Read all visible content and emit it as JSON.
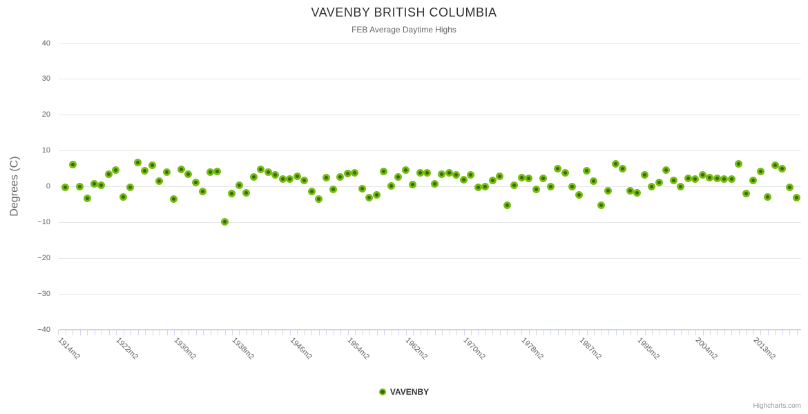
{
  "chart": {
    "title": "VAVENBY BRITISH COLUMBIA",
    "subtitle": "FEB Average Daytime Highs",
    "y_axis_title": "Degrees (C)",
    "legend_label": "VAVENBY",
    "credits_label": "Highcharts.com",
    "colors": {
      "marker_core": "#346a02",
      "marker_ring": "#77bc11",
      "grid_line": "#e6e6e6",
      "axis_line": "#ccd6eb",
      "title_text": "#333333",
      "subtitle_text": "#666666",
      "axis_label_text": "#606060",
      "legend_text": "#333333",
      "credits_text": "#999999"
    }
  },
  "chart_data": {
    "type": "scatter",
    "title": "VAVENBY BRITISH COLUMBIA",
    "subtitle": "FEB Average Daytime Highs",
    "ylabel": "Degrees (C)",
    "ylim": [
      -40,
      40
    ],
    "grid": "horizontal",
    "legend_position": "bottom-center",
    "y_ticks": [
      {
        "value": 40,
        "label": "40"
      },
      {
        "value": 30,
        "label": "30"
      },
      {
        "value": 20,
        "label": "20"
      },
      {
        "value": 10,
        "label": "10"
      },
      {
        "value": 0,
        "label": "0"
      },
      {
        "value": -10,
        "label": "−10"
      },
      {
        "value": -20,
        "label": "−20"
      },
      {
        "value": -30,
        "label": "−30"
      },
      {
        "value": -40,
        "label": "−40"
      }
    ],
    "categories_count": 102,
    "x_tick_labels": [
      {
        "index": 1,
        "label": "1914m2"
      },
      {
        "index": 9,
        "label": "1922m2"
      },
      {
        "index": 17,
        "label": "1930m2"
      },
      {
        "index": 25,
        "label": "1938m2"
      },
      {
        "index": 33,
        "label": "1946m2"
      },
      {
        "index": 41,
        "label": "1954m2"
      },
      {
        "index": 49,
        "label": "1962m2"
      },
      {
        "index": 57,
        "label": "1970m2"
      },
      {
        "index": 65,
        "label": "1978m2"
      },
      {
        "index": 73,
        "label": "1987m2"
      },
      {
        "index": 81,
        "label": "1995m2"
      },
      {
        "index": 89,
        "label": "2004m2"
      },
      {
        "index": 97,
        "label": "2013m2"
      }
    ],
    "series": [
      {
        "name": "VAVENBY",
        "color": "#77bc11",
        "values": [
          -0.2,
          6,
          -0.1,
          -3.3,
          0.7,
          0.3,
          3.3,
          4.5,
          -2.9,
          -0.2,
          6.7,
          4.4,
          5.9,
          1.5,
          4,
          -3.6,
          4.8,
          3.4,
          1,
          -1.4,
          3.9,
          4.2,
          -9.9,
          -2,
          0.3,
          -1.9,
          2.6,
          4.7,
          3.9,
          3.2,
          2.1,
          2.1,
          2.9,
          1.6,
          -1.5,
          -3.6,
          2.5,
          -0.8,
          2.6,
          3.5,
          3.7,
          -0.6,
          -3.2,
          -2.4,
          4.1,
          0.1,
          2.7,
          4.5,
          0.4,
          3.8,
          3.7,
          0.6,
          3.4,
          3.7,
          3.1,
          1.8,
          3.1,
          -0.2,
          -0.1,
          1.6,
          2.9,
          -5.3,
          0.3,
          2.5,
          2.3,
          -0.8,
          2.3,
          -0.1,
          5,
          3.7,
          0,
          -2.4,
          4.4,
          1.5,
          -5.2,
          -1.2,
          6.2,
          5,
          -1.3,
          -1.9,
          3.1,
          0,
          1,
          4.5,
          1.6,
          -0.1,
          2.3,
          2.1,
          3.2,
          2.5,
          2.2,
          2.1,
          2.1,
          6.2,
          -2.1,
          1.6,
          4.2,
          -3,
          5.8,
          4.9,
          -0.3,
          -3.1
        ]
      }
    ]
  }
}
